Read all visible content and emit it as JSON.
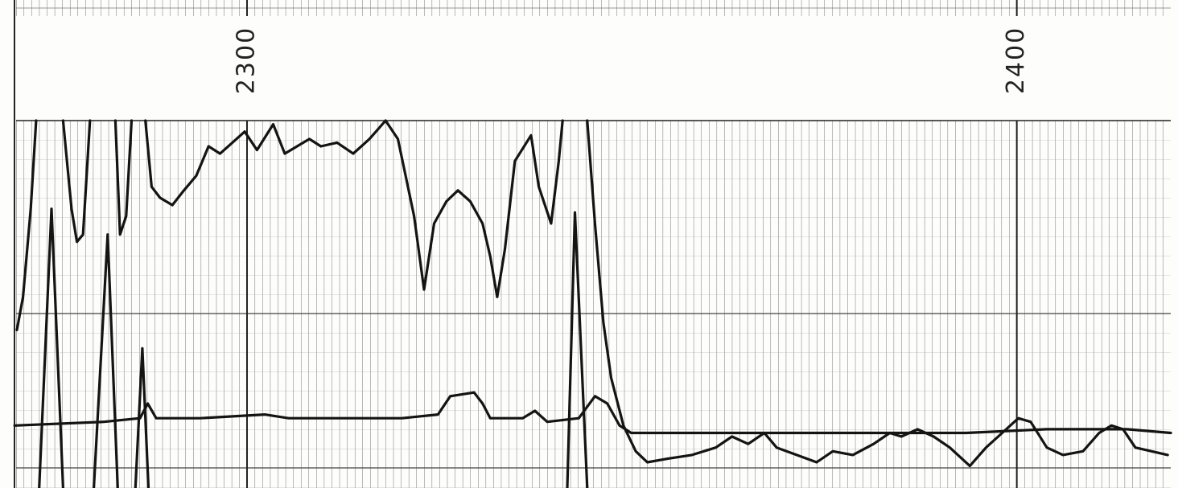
{
  "chart_data": {
    "type": "line",
    "xlim": [
      2270,
      2420
    ],
    "ylim": [
      0,
      100
    ],
    "xticks": [
      2300,
      2400
    ],
    "grid": true,
    "series": [
      {
        "color": "#141414",
        "x": [
          2270.1,
          2270.9,
          2271.9,
          2272.6,
          null,
          2276.1,
          2277.2,
          2277.9,
          2278.7,
          2279.6,
          null,
          2282.9,
          2283.5,
          2284.3,
          2285.0,
          null,
          2286.8,
          2287.6,
          2288.7,
          2290.3,
          2291.8,
          2293.4,
          2295.0,
          2296.5,
          2298.1,
          2299.7,
          2301.3,
          2303.4,
          2304.9,
          2306.5,
          2308.1,
          2309.6,
          2311.7,
          2313.8,
          2315.9,
          2318.0,
          2319.6,
          2320.6,
          2321.7,
          2323.0,
          2324.3,
          2325.9,
          2327.4,
          2329.0,
          2330.6,
          2331.6,
          2332.5,
          2333.5,
          2334.8,
          2336.9,
          2337.9,
          2339.5,
          2340.5,
          2341.0,
          null,
          2344.2,
          2345.2,
          2346.3,
          2347.3,
          2348.9,
          2350.5,
          2352.0,
          2354.7,
          2357.8,
          2360.9,
          2363.0,
          2365.1,
          2367.2,
          2368.8,
          2371.4,
          2374.0,
          2376.1,
          2378.7,
          2381.4,
          2383.5,
          2385.0,
          2387.1,
          2389.2,
          2391.3,
          2393.9,
          2396.0,
          2398.1,
          2400.2,
          2401.8,
          2403.9,
          2406.0,
          2408.6,
          2410.7,
          2412.3,
          2413.8,
          2415.4,
          2417.5,
          2419.6
        ],
        "values": [
          43,
          52,
          76,
          100,
          null,
          100,
          76,
          67,
          69,
          100,
          null,
          100,
          69,
          74,
          100,
          null,
          100,
          82,
          79,
          77,
          81,
          85,
          93,
          91,
          94,
          97,
          92,
          99,
          91,
          93,
          95,
          93,
          94,
          91,
          95,
          100,
          95,
          85,
          74,
          54,
          72,
          78,
          81,
          78,
          72,
          63,
          52,
          65,
          89,
          96,
          82,
          72,
          89,
          100,
          null,
          100,
          72,
          45,
          30,
          17,
          10,
          7,
          8,
          9,
          11,
          14,
          12,
          15,
          11,
          9,
          7,
          10,
          9,
          12,
          15,
          14,
          16,
          14,
          11,
          6,
          11,
          15,
          19,
          18,
          11,
          9,
          10,
          15,
          17,
          16,
          11,
          10,
          9
        ]
      },
      {
        "color": "#141414",
        "x": [
          2269.8,
          2281.4,
          2286.1,
          2287.1,
          2288.2,
          2293.9,
          2302.3,
          2305.4,
          2314.9,
          2320.1,
          2324.8,
          2326.4,
          2329.5,
          2330.6,
          2331.6,
          2335.8,
          2337.4,
          2339.0,
          2343.1,
          2345.2,
          2346.8,
          2348.4,
          2349.9,
          2356.8,
          2362.0,
          2372.5,
          2382.9,
          2393.4,
          2403.9,
          2414.3,
          2420.0
        ],
        "values": [
          17,
          18,
          19,
          23,
          19,
          19,
          20,
          19,
          19,
          19,
          20,
          25,
          26,
          23,
          19,
          19,
          21,
          18,
          19,
          25,
          23,
          17,
          15,
          15,
          15,
          15,
          15,
          15,
          16,
          16,
          15
        ]
      },
      {
        "color": "#141414",
        "x": [
          2273.0,
          2274.6,
          2276.1,
          null,
          2280.1,
          2281.9,
          2283.2,
          null,
          2285.5,
          2286.4,
          2287.2,
          null,
          2341.6,
          2342.6,
          2344.2
        ],
        "values": [
          0,
          76,
          0,
          null,
          0,
          69,
          0,
          null,
          0,
          38,
          0,
          null,
          0,
          75,
          0
        ]
      }
    ]
  }
}
